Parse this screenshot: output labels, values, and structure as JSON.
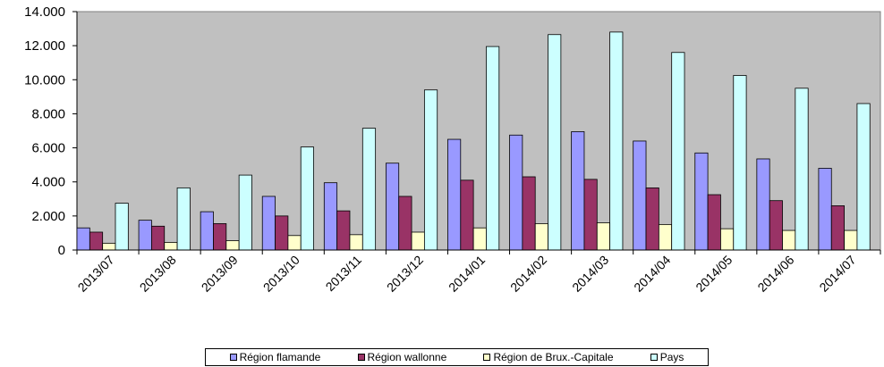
{
  "chart_data": {
    "type": "bar",
    "categories": [
      "2013/07",
      "2013/08",
      "2013/09",
      "2013/10",
      "2013/11",
      "2013/12",
      "2014/01",
      "2014/02",
      "2014/03",
      "2014/04",
      "2014/05",
      "2014/06",
      "2014/07"
    ],
    "series": [
      {
        "name": "Région flamande",
        "color": "#9999ff",
        "values": [
          1300,
          1750,
          2250,
          3150,
          3950,
          5100,
          6500,
          6750,
          6950,
          6400,
          5700,
          5350,
          4800
        ]
      },
      {
        "name": "Région wallonne",
        "color": "#993366",
        "values": [
          1050,
          1400,
          1550,
          2000,
          2300,
          3150,
          4100,
          4300,
          4150,
          3650,
          3250,
          2900,
          2600
        ]
      },
      {
        "name": "Région de Brux.-Capitale",
        "color": "#ffffcc",
        "values": [
          400,
          450,
          550,
          850,
          900,
          1050,
          1300,
          1550,
          1600,
          1500,
          1250,
          1150,
          1150
        ]
      },
      {
        "name": "Pays",
        "color": "#ccffff",
        "values": [
          2750,
          3650,
          4400,
          6050,
          7150,
          9400,
          11950,
          12650,
          12800,
          11600,
          10250,
          9500,
          8600
        ]
      }
    ],
    "yticks": [
      "0",
      "2.000",
      "4.000",
      "6.000",
      "8.000",
      "10.000",
      "12.000",
      "14.000"
    ],
    "ylim": [
      0,
      14000
    ],
    "plot_background": "#c0c0c0",
    "legend_position": "bottom",
    "grid": false
  }
}
